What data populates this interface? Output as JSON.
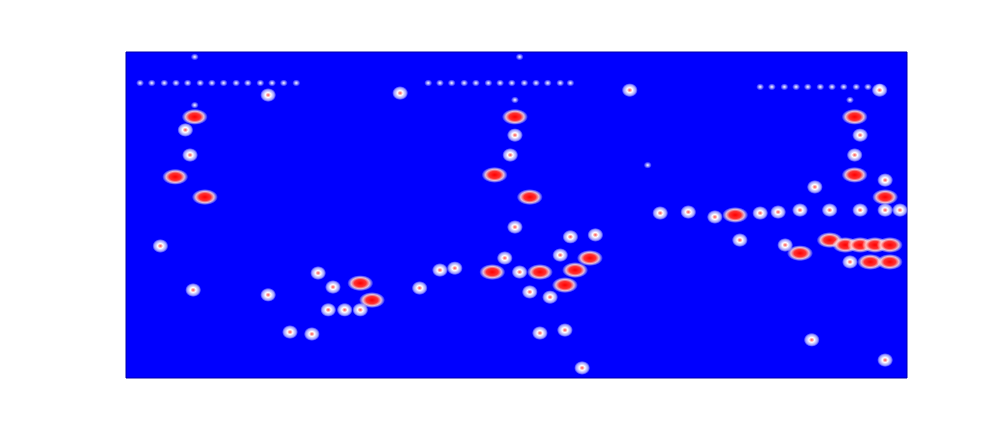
{
  "chart_data": {
    "type": "heatmap",
    "xlim": [
      0,
      100
    ],
    "ylim": [
      0,
      100
    ],
    "xticks": [],
    "yticks": [],
    "tick_labels": false,
    "grid": false,
    "x": [
      1.8,
      3.3,
      4.9,
      6.4,
      7.9,
      9.5,
      11.0,
      12.5,
      14.1,
      15.6,
      17.2,
      18.7,
      20.2,
      21.8,
      38.7,
      40.2,
      41.7,
      43.3,
      44.8,
      46.4,
      47.9,
      49.4,
      51.0,
      52.5,
      54.0,
      55.6,
      56.9,
      81.2,
      82.7,
      84.3,
      85.8,
      87.3,
      88.9,
      90.4,
      91.9,
      93.5,
      95.0,
      96.5,
      8.8,
      6.3,
      10.1,
      4.4,
      8.6,
      18.2,
      21.0,
      23.8,
      24.6,
      26.5,
      30.0,
      25.9,
      28.0,
      30.0,
      31.5,
      35.1,
      18.2,
      37.6,
      40.2,
      42.1,
      46.9,
      48.5,
      50.4,
      53.0,
      51.7,
      54.3,
      56.2,
      57.5,
      55.6,
      59.4,
      56.9,
      60.1,
      49.8,
      47.2,
      51.7,
      49.8,
      53.0,
      56.2,
      58.4,
      64.5,
      66.8,
      68.4,
      72.0,
      75.4,
      78.0,
      81.2,
      83.5,
      86.3,
      88.2,
      90.1,
      94.0,
      97.2,
      99.1,
      78.6,
      84.4,
      86.3,
      90.1,
      92.1,
      94.0,
      95.9,
      97.8,
      92.7,
      95.3,
      97.8,
      93.3,
      93.3,
      97.2,
      97.2,
      87.8,
      97.2,
      8.8,
      7.6,
      8.2,
      49.8,
      49.8,
      49.2,
      92.7,
      94.0,
      93.3,
      96.5,
      8.8,
      50.4
    ],
    "values": [
      90.5,
      90.5,
      90.5,
      90.5,
      90.5,
      90.5,
      90.5,
      90.5,
      90.5,
      90.5,
      90.5,
      90.5,
      90.5,
      90.5,
      90.5,
      90.5,
      90.5,
      90.5,
      90.5,
      90.5,
      90.5,
      90.5,
      90.5,
      90.5,
      90.5,
      90.5,
      90.5,
      89.3,
      89.3,
      89.3,
      89.3,
      89.3,
      89.3,
      89.3,
      89.3,
      89.3,
      89.3,
      89.3,
      80.1,
      61.7,
      55.5,
      40.5,
      27.0,
      25.5,
      14.1,
      13.5,
      32.2,
      27.9,
      29.1,
      20.9,
      20.9,
      20.9,
      23.9,
      87.4,
      86.8,
      27.6,
      33.1,
      33.7,
      32.5,
      36.8,
      32.5,
      32.5,
      26.4,
      24.8,
      28.5,
      33.1,
      37.7,
      36.8,
      43.3,
      43.9,
      80.1,
      62.3,
      55.5,
      46.3,
      13.8,
      14.7,
      3.1,
      88.3,
      65.3,
      50.6,
      50.9,
      49.4,
      50.0,
      50.6,
      50.9,
      51.5,
      58.6,
      51.5,
      51.5,
      51.5,
      51.5,
      42.3,
      40.8,
      38.3,
      42.3,
      40.8,
      40.8,
      40.8,
      40.8,
      35.6,
      35.6,
      35.6,
      80.1,
      62.3,
      55.5,
      60.7,
      11.7,
      5.5,
      83.7,
      76.1,
      68.4,
      85.3,
      74.5,
      68.4,
      85.3,
      74.5,
      68.4,
      88.3,
      98.5,
      98.5
    ],
    "intensity": [
      1,
      1,
      1,
      1,
      1,
      1,
      1,
      1,
      1,
      1,
      1,
      1,
      1,
      1,
      1,
      1,
      1,
      1,
      1,
      1,
      1,
      1,
      1,
      1,
      1,
      1,
      1,
      1,
      1,
      1,
      1,
      1,
      1,
      1,
      1,
      1,
      1,
      1,
      3,
      3,
      3,
      2,
      2,
      2,
      2,
      2,
      2,
      2,
      3,
      2,
      2,
      2,
      3,
      2,
      2,
      2,
      2,
      2,
      3,
      2,
      2,
      3,
      2,
      2,
      3,
      3,
      2,
      3,
      2,
      2,
      3,
      3,
      3,
      2,
      2,
      2,
      2,
      2,
      1,
      2,
      2,
      2,
      3,
      2,
      2,
      2,
      2,
      2,
      2,
      2,
      2,
      2,
      2,
      3,
      3,
      3,
      3,
      3,
      3,
      2,
      3,
      3,
      3,
      3,
      3,
      2,
      2,
      2,
      1,
      2,
      2,
      1,
      2,
      2,
      1,
      2,
      2,
      2,
      1,
      1
    ]
  }
}
